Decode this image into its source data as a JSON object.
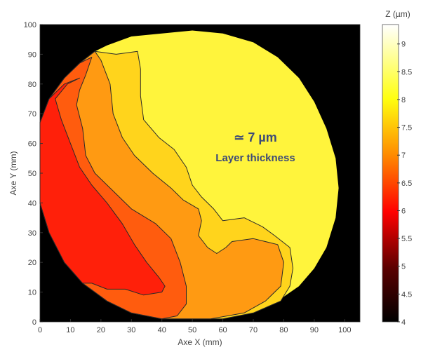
{
  "chart_data": {
    "type": "heatmap",
    "subtype": "filled-contour",
    "xlabel": "Axe X (mm)",
    "ylabel": "Axe Y (mm)",
    "xlim": [
      0,
      105
    ],
    "ylim": [
      0,
      100
    ],
    "xticks": [
      0,
      10,
      20,
      30,
      40,
      50,
      60,
      70,
      80,
      90,
      100
    ],
    "yticks": [
      0,
      10,
      20,
      30,
      40,
      50,
      60,
      70,
      80,
      90,
      100
    ],
    "background_color": "#000000",
    "colorbar": {
      "label": "Z (µm)",
      "range": [
        4,
        9.35
      ],
      "ticks": [
        "4",
        "4.5",
        "5",
        "5.5",
        "6",
        "6.5",
        "7",
        "7.5",
        "8",
        "8.5",
        "9"
      ],
      "colormap": "hot"
    },
    "annotation": {
      "value": "≃ 7 µm",
      "text": "Layer thickness"
    },
    "regions": [
      {
        "level": "8.5",
        "color": "#FFF43C",
        "points": [
          [
            0,
            67
          ],
          [
            3,
            75
          ],
          [
            8,
            82
          ],
          [
            13,
            87
          ],
          [
            18,
            91
          ],
          [
            22,
            93
          ],
          [
            30,
            96
          ],
          [
            40,
            97
          ],
          [
            50,
            98
          ],
          [
            60,
            97
          ],
          [
            70,
            94
          ],
          [
            78,
            89
          ],
          [
            85,
            82
          ],
          [
            90,
            74
          ],
          [
            94,
            65
          ],
          [
            97,
            55
          ],
          [
            98,
            45
          ],
          [
            97,
            35
          ],
          [
            94,
            25
          ],
          [
            90,
            18
          ],
          [
            85,
            12
          ],
          [
            78,
            7
          ],
          [
            70,
            3
          ],
          [
            60,
            1
          ],
          [
            48,
            1
          ],
          [
            40,
            1
          ],
          [
            30,
            3
          ],
          [
            22,
            7
          ],
          [
            14,
            13
          ],
          [
            8,
            20
          ],
          [
            3,
            30
          ],
          [
            0,
            40
          ]
        ]
      },
      {
        "level": "8",
        "color": "#FFD41C",
        "points": [
          [
            18,
            91
          ],
          [
            25,
            90
          ],
          [
            32,
            91
          ],
          [
            33,
            85
          ],
          [
            33,
            76
          ],
          [
            34,
            68
          ],
          [
            39,
            62
          ],
          [
            44,
            58
          ],
          [
            48,
            52
          ],
          [
            50,
            46
          ],
          [
            53,
            42
          ],
          [
            57,
            38
          ],
          [
            60,
            34
          ],
          [
            67,
            35
          ],
          [
            73,
            32
          ],
          [
            77,
            29
          ],
          [
            82,
            25
          ],
          [
            83,
            18
          ],
          [
            82,
            12
          ],
          [
            79,
            7
          ],
          [
            70,
            3
          ],
          [
            60,
            1
          ],
          [
            48,
            1
          ],
          [
            40,
            1
          ],
          [
            30,
            3
          ],
          [
            22,
            7
          ],
          [
            14,
            13
          ],
          [
            8,
            20
          ],
          [
            3,
            30
          ],
          [
            0,
            40
          ],
          [
            0,
            67
          ],
          [
            3,
            75
          ],
          [
            8,
            82
          ],
          [
            13,
            87
          ]
        ]
      },
      {
        "level": "7.5",
        "color": "#FF9A12",
        "points": [
          [
            18,
            91
          ],
          [
            20,
            88
          ],
          [
            23,
            80
          ],
          [
            24,
            70
          ],
          [
            27,
            62
          ],
          [
            31,
            56
          ],
          [
            37,
            50
          ],
          [
            43,
            45
          ],
          [
            47,
            41
          ],
          [
            52,
            38
          ],
          [
            53,
            34
          ],
          [
            52,
            29
          ],
          [
            55,
            25
          ],
          [
            58,
            23
          ],
          [
            61,
            25
          ],
          [
            63,
            27
          ],
          [
            70,
            28
          ],
          [
            78,
            26
          ],
          [
            80,
            20
          ],
          [
            79,
            12
          ],
          [
            74,
            7
          ],
          [
            67,
            3
          ],
          [
            56,
            1
          ],
          [
            48,
            1
          ],
          [
            40,
            1
          ],
          [
            30,
            3
          ],
          [
            22,
            7
          ],
          [
            14,
            13
          ],
          [
            8,
            20
          ],
          [
            3,
            30
          ],
          [
            0,
            40
          ],
          [
            0,
            67
          ],
          [
            3,
            75
          ],
          [
            8,
            82
          ],
          [
            13,
            87
          ]
        ]
      },
      {
        "level": "7",
        "color": "#FF5C0E",
        "points": [
          [
            17,
            89
          ],
          [
            15,
            83
          ],
          [
            13,
            78
          ],
          [
            12,
            73
          ],
          [
            14,
            65
          ],
          [
            15,
            56
          ],
          [
            18,
            50
          ],
          [
            24,
            44
          ],
          [
            30,
            38
          ],
          [
            38,
            33
          ],
          [
            43,
            28
          ],
          [
            46,
            20
          ],
          [
            48,
            12
          ],
          [
            48,
            6
          ],
          [
            45,
            2
          ],
          [
            40,
            1
          ],
          [
            30,
            3
          ],
          [
            22,
            7
          ],
          [
            14,
            13
          ],
          [
            8,
            20
          ],
          [
            3,
            30
          ],
          [
            0,
            40
          ],
          [
            0,
            67
          ],
          [
            3,
            75
          ],
          [
            8,
            82
          ],
          [
            13,
            87
          ]
        ]
      },
      {
        "level": "6.5",
        "color": "#FF200A",
        "points": [
          [
            13,
            82
          ],
          [
            9,
            80
          ],
          [
            5,
            75
          ],
          [
            7,
            68
          ],
          [
            10,
            60
          ],
          [
            13,
            52
          ],
          [
            17,
            46
          ],
          [
            22,
            40
          ],
          [
            27,
            33
          ],
          [
            31,
            26
          ],
          [
            35,
            20
          ],
          [
            39,
            15
          ],
          [
            41,
            12
          ],
          [
            40,
            10
          ],
          [
            34,
            9
          ],
          [
            28,
            11
          ],
          [
            22,
            11
          ],
          [
            17,
            13
          ],
          [
            14,
            13
          ],
          [
            8,
            20
          ],
          [
            3,
            30
          ],
          [
            0,
            40
          ],
          [
            0,
            67
          ],
          [
            3,
            75
          ],
          [
            8,
            80
          ]
        ]
      }
    ]
  }
}
